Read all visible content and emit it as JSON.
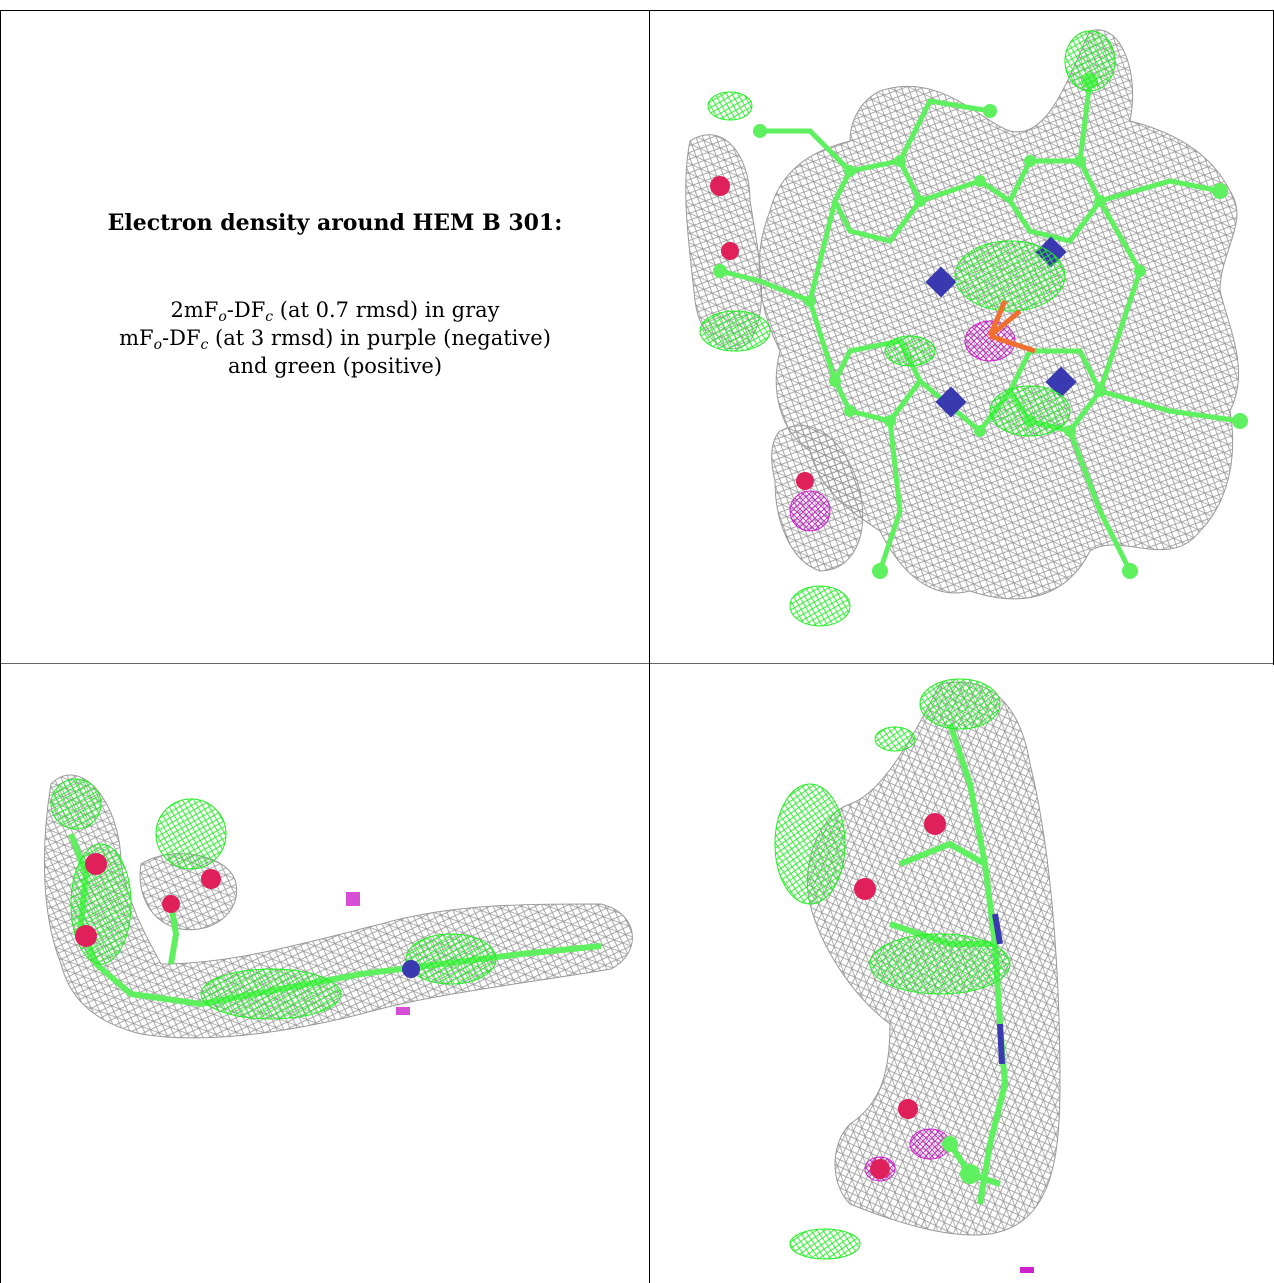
{
  "caption": {
    "title": "Electron density around HEM B 301:",
    "line1": {
      "pre": "2mF",
      "sub1": "o",
      "mid": "-DF",
      "sub2": "c",
      "post": " (at 0.7 rmsd) in gray"
    },
    "line2": {
      "pre": "mF",
      "sub1": "o",
      "mid": "-DF",
      "sub2": "c",
      "post": " (at 3 rmsd) in purple (negative)"
    },
    "line3": "and green (positive)"
  },
  "colors": {
    "mesh_2fofc": "#9a9a9a",
    "mesh_positive": "#22ee22",
    "mesh_negative": "#cc22cc",
    "carbon": "#5ef05e",
    "nitrogen": "#3a3ab0",
    "oxygen": "#e0205a",
    "iron": "#f07030"
  },
  "panels": [
    {
      "view": "top-right",
      "content": "heme-face-view"
    },
    {
      "view": "bottom-left",
      "content": "heme-edge-view"
    },
    {
      "view": "bottom-right",
      "content": "heme-side-view"
    }
  ]
}
